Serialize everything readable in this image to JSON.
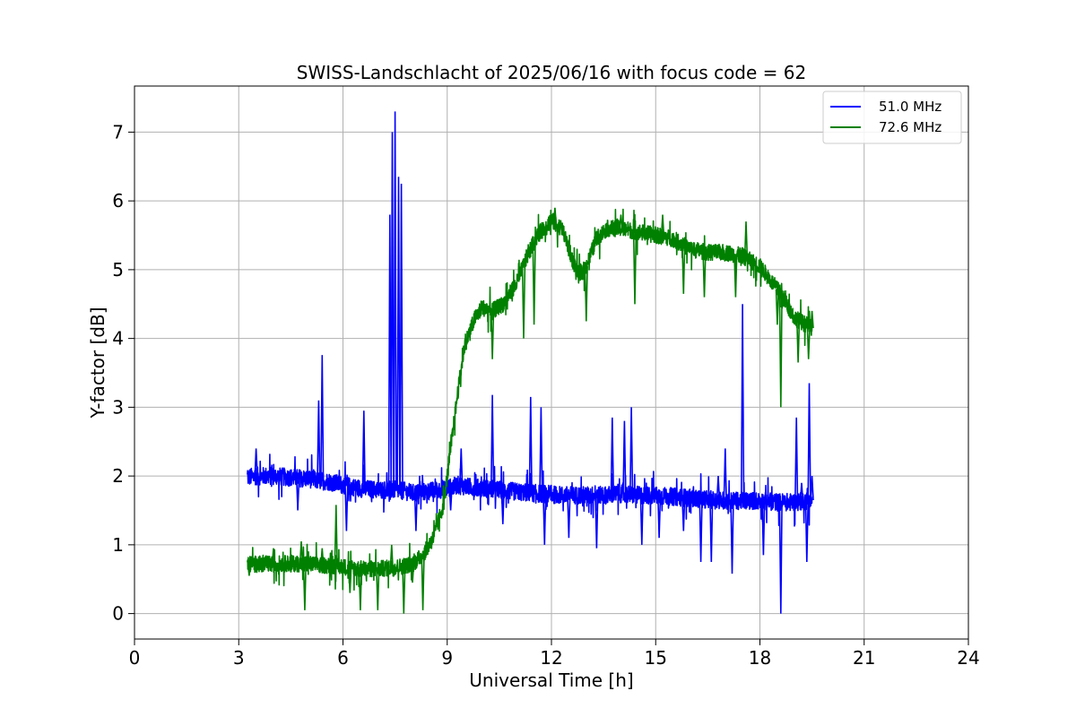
{
  "chart_data": {
    "type": "line",
    "title": "SWISS-Landschlacht of 2025/06/16 with focus code = 62",
    "xlabel": "Universal Time [h]",
    "ylabel": "Y-factor [dB]",
    "xlim": [
      0,
      24
    ],
    "ylim": [
      -0.37,
      7.67
    ],
    "xticks": [
      0,
      3,
      6,
      9,
      12,
      15,
      18,
      21,
      24
    ],
    "xtick_labels": [
      "0",
      "3",
      "6",
      "9",
      "12",
      "15",
      "18",
      "21",
      "24"
    ],
    "yticks": [
      0,
      1,
      2,
      3,
      4,
      5,
      6,
      7
    ],
    "ytick_labels": [
      "0",
      "1",
      "2",
      "3",
      "4",
      "5",
      "6",
      "7"
    ],
    "grid": true,
    "legend_position": "top-right",
    "series": [
      {
        "name": "51.0 MHz",
        "color": "#0000ff",
        "x": [
          3.25,
          3.5,
          4.0,
          4.5,
          5.0,
          5.3,
          5.6,
          6.0,
          6.5,
          7.0,
          7.3,
          7.5,
          7.8,
          8.0,
          8.5,
          9.0,
          9.3,
          9.5,
          10.0,
          10.5,
          11.0,
          11.5,
          12.0,
          12.5,
          13.0,
          13.5,
          14.0,
          14.5,
          15.0,
          15.5,
          16.0,
          16.5,
          17.0,
          17.5,
          18.0,
          18.5,
          19.0,
          19.5
        ],
        "y": [
          1.98,
          2.0,
          2.0,
          1.98,
          1.96,
          1.93,
          1.92,
          1.87,
          1.82,
          1.8,
          1.8,
          1.8,
          1.78,
          1.75,
          1.78,
          1.82,
          1.87,
          1.85,
          1.82,
          1.8,
          1.77,
          1.75,
          1.73,
          1.72,
          1.72,
          1.72,
          1.74,
          1.72,
          1.72,
          1.7,
          1.68,
          1.66,
          1.64,
          1.64,
          1.64,
          1.62,
          1.62,
          1.65
        ],
        "spikes": [
          {
            "x": 3.5,
            "y": 2.4
          },
          {
            "x": 4.7,
            "y": 1.5
          },
          {
            "x": 5.3,
            "y": 3.1
          },
          {
            "x": 5.4,
            "y": 3.76
          },
          {
            "x": 6.1,
            "y": 1.2
          },
          {
            "x": 6.6,
            "y": 2.95
          },
          {
            "x": 7.35,
            "y": 5.8
          },
          {
            "x": 7.42,
            "y": 7.0
          },
          {
            "x": 7.5,
            "y": 7.3
          },
          {
            "x": 7.6,
            "y": 6.35
          },
          {
            "x": 7.68,
            "y": 6.25
          },
          {
            "x": 8.1,
            "y": 1.2
          },
          {
            "x": 9.1,
            "y": 1.5
          },
          {
            "x": 9.4,
            "y": 2.4
          },
          {
            "x": 10.3,
            "y": 3.18
          },
          {
            "x": 10.6,
            "y": 1.3
          },
          {
            "x": 11.4,
            "y": 3.15
          },
          {
            "x": 11.7,
            "y": 3.0
          },
          {
            "x": 11.8,
            "y": 1.0
          },
          {
            "x": 12.5,
            "y": 1.1
          },
          {
            "x": 13.3,
            "y": 0.95
          },
          {
            "x": 13.75,
            "y": 2.85
          },
          {
            "x": 14.1,
            "y": 2.8
          },
          {
            "x": 14.3,
            "y": 3.0
          },
          {
            "x": 14.6,
            "y": 1.0
          },
          {
            "x": 15.1,
            "y": 1.1
          },
          {
            "x": 15.8,
            "y": 1.2
          },
          {
            "x": 16.3,
            "y": 0.75
          },
          {
            "x": 16.6,
            "y": 0.75
          },
          {
            "x": 16.8,
            "y": 2.0
          },
          {
            "x": 17.0,
            "y": 2.4
          },
          {
            "x": 17.2,
            "y": 0.58
          },
          {
            "x": 17.5,
            "y": 4.5
          },
          {
            "x": 18.1,
            "y": 0.85
          },
          {
            "x": 18.6,
            "y": 0.0
          },
          {
            "x": 18.8,
            "y": 1.6
          },
          {
            "x": 19.05,
            "y": 2.85
          },
          {
            "x": 19.2,
            "y": 1.9
          },
          {
            "x": 19.35,
            "y": 0.75
          },
          {
            "x": 19.42,
            "y": 3.35
          },
          {
            "x": 19.5,
            "y": 2.0
          }
        ]
      },
      {
        "name": "72.6 MHz",
        "color": "#008000",
        "x": [
          3.25,
          3.5,
          4.0,
          4.5,
          5.0,
          5.5,
          6.0,
          6.5,
          7.0,
          7.5,
          8.0,
          8.3,
          8.6,
          8.9,
          9.1,
          9.3,
          9.5,
          9.8,
          10.0,
          10.3,
          10.6,
          11.0,
          11.3,
          11.6,
          12.0,
          12.3,
          12.6,
          12.8,
          13.0,
          13.3,
          13.6,
          14.0,
          14.5,
          15.0,
          15.5,
          16.0,
          16.5,
          17.0,
          17.5,
          18.0,
          18.3,
          18.6,
          19.0,
          19.5
        ],
        "y": [
          0.72,
          0.72,
          0.72,
          0.73,
          0.72,
          0.7,
          0.68,
          0.65,
          0.65,
          0.67,
          0.72,
          0.85,
          1.1,
          1.6,
          2.4,
          3.2,
          3.9,
          4.3,
          4.45,
          4.4,
          4.5,
          4.8,
          5.2,
          5.5,
          5.72,
          5.6,
          5.15,
          4.9,
          5.05,
          5.45,
          5.6,
          5.6,
          5.55,
          5.5,
          5.45,
          5.3,
          5.25,
          5.25,
          5.2,
          5.05,
          4.85,
          4.65,
          4.3,
          4.15
        ],
        "spikes": [
          {
            "x": 3.3,
            "y": 0.55
          },
          {
            "x": 4.0,
            "y": 0.95
          },
          {
            "x": 4.5,
            "y": 0.6
          },
          {
            "x": 4.8,
            "y": 1.05
          },
          {
            "x": 4.9,
            "y": 0.05
          },
          {
            "x": 5.4,
            "y": 0.95
          },
          {
            "x": 5.8,
            "y": 1.58
          },
          {
            "x": 6.2,
            "y": 0.3
          },
          {
            "x": 6.5,
            "y": 0.05
          },
          {
            "x": 7.0,
            "y": 0.05
          },
          {
            "x": 7.4,
            "y": 1.0
          },
          {
            "x": 7.75,
            "y": 0.0
          },
          {
            "x": 8.0,
            "y": 0.45
          },
          {
            "x": 8.3,
            "y": 0.05
          },
          {
            "x": 10.3,
            "y": 3.7
          },
          {
            "x": 11.2,
            "y": 4.0
          },
          {
            "x": 11.5,
            "y": 4.2
          },
          {
            "x": 12.1,
            "y": 5.9
          },
          {
            "x": 13.0,
            "y": 4.25
          },
          {
            "x": 13.6,
            "y": 5.6
          },
          {
            "x": 14.0,
            "y": 5.8
          },
          {
            "x": 14.4,
            "y": 4.5
          },
          {
            "x": 15.2,
            "y": 5.8
          },
          {
            "x": 15.8,
            "y": 4.65
          },
          {
            "x": 16.4,
            "y": 4.6
          },
          {
            "x": 17.3,
            "y": 4.6
          },
          {
            "x": 17.6,
            "y": 5.7
          },
          {
            "x": 18.5,
            "y": 4.2
          },
          {
            "x": 18.6,
            "y": 3.0
          },
          {
            "x": 19.1,
            "y": 3.65
          },
          {
            "x": 19.4,
            "y": 3.7
          },
          {
            "x": 19.5,
            "y": 4.4
          }
        ]
      }
    ]
  }
}
